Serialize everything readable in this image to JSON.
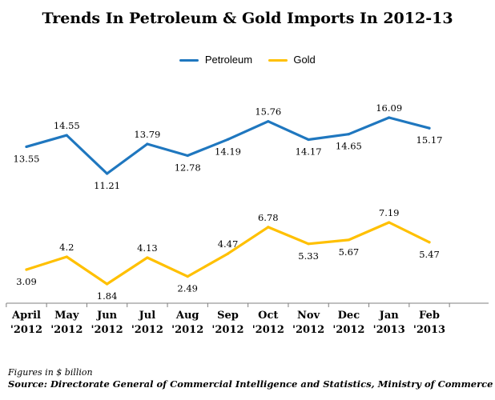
{
  "title": "Trends In Petroleum & Gold Imports In 2012-13",
  "footnote": {
    "units": "Figures in $ billion",
    "source": "Source: Directorate General of Commercial Intelligence and Statistics, Ministry of Commerce"
  },
  "colors": {
    "petroleum": "#1f77bf",
    "gold": "#ffc000",
    "axis": "#7f7f7f"
  },
  "chart_data": {
    "type": "line",
    "title": "Trends In Petroleum & Gold Imports In 2012-13",
    "categories": [
      [
        "April",
        "'2012"
      ],
      [
        "May",
        "'2012"
      ],
      [
        "Jun",
        "'2012"
      ],
      [
        "Jul",
        "'2012"
      ],
      [
        "Aug",
        "'2012"
      ],
      [
        "Sep",
        "'2012"
      ],
      [
        "Oct",
        "'2012"
      ],
      [
        "Nov",
        "'2012"
      ],
      [
        "Dec",
        "'2012"
      ],
      [
        "Jan",
        "'2013"
      ],
      [
        "Feb",
        "'2013"
      ]
    ],
    "series": [
      {
        "name": "Petroleum",
        "values": [
          13.55,
          14.55,
          11.21,
          13.79,
          12.78,
          14.19,
          15.76,
          14.17,
          14.65,
          16.09,
          15.17
        ],
        "labels": [
          "13.55",
          "14.55",
          "11.21",
          "13.79",
          "12.78",
          "14.19",
          "15.76",
          "14.17",
          "14.65",
          "16.09",
          "15.17"
        ]
      },
      {
        "name": "Gold",
        "values": [
          3.09,
          4.2,
          1.84,
          4.13,
          2.49,
          4.47,
          6.78,
          5.33,
          5.67,
          7.19,
          5.47
        ],
        "labels": [
          "3.09",
          "4.2",
          "1.84",
          "4.13",
          "2.49",
          "4.47",
          "6.78",
          "5.33",
          "5.67",
          "7.19",
          "5.47"
        ]
      }
    ],
    "legend_position": "top-center",
    "grid": false
  }
}
